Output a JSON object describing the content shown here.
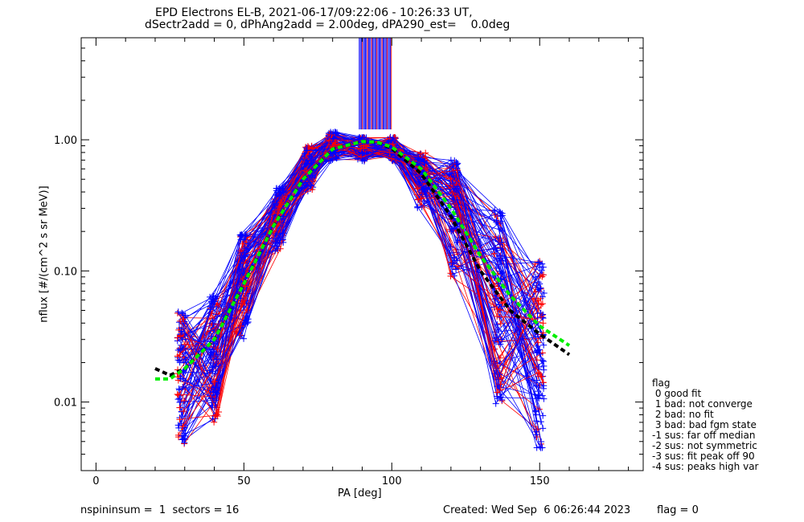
{
  "title_line1": "EPD Electrons EL-B, 2021-06-17/09:22:06 - 10:26:33 UT,",
  "title_line2": "dSectr2add = 0, dPhAng2add = 2.00deg, dPA290_est=    0.0deg",
  "footer": {
    "spin_info": "nspininsum =  1  sectors = 16",
    "created": "Created: Wed Sep  6 06:26:44 2023",
    "flag": "flag = 0"
  },
  "legend": {
    "title": "flag",
    "items": [
      " 0 good fit",
      " 1 bad: not converge",
      " 2 bad: no fit",
      " 3 bad: bad fgm state",
      "-1 sus: far off median",
      "-2 sus: not symmetric",
      "-3 sus: fit peak off 90",
      "-4 sus: peaks high var"
    ]
  },
  "colors": {
    "red": "#ff0000",
    "blue": "#0000ff",
    "green": "#00ee00",
    "black": "#000000"
  },
  "chart_data": {
    "type": "line",
    "xlabel": "PA [deg]",
    "ylabel": "nflux [#/(cm^2 s sr MeV)]",
    "xlim": [
      -5,
      185
    ],
    "ylim": [
      0.003,
      6
    ],
    "yscale": "log",
    "xticks": [
      0,
      50,
      100,
      150
    ],
    "xtick_labels": [
      "0",
      "50",
      "100",
      "150"
    ],
    "yticks": [
      0.01,
      0.1,
      1.0
    ],
    "ytick_labels": [
      "0.01",
      "0.10",
      "1.00"
    ],
    "grid": false,
    "series_envelope": {
      "x": [
        29,
        40,
        50,
        62,
        72,
        80,
        90,
        100,
        110,
        121,
        136,
        150
      ],
      "low_red": [
        0.004,
        0.007,
        0.03,
        0.14,
        0.4,
        0.68,
        0.68,
        0.68,
        0.3,
        0.09,
        0.008,
        0.004
      ],
      "mid": [
        0.02,
        0.04,
        0.1,
        0.3,
        0.65,
        0.85,
        0.9,
        0.85,
        0.55,
        0.25,
        0.04,
        0.013
      ],
      "high_blue": [
        0.05,
        0.065,
        0.2,
        0.45,
        0.9,
        1.15,
        1.05,
        1.05,
        0.8,
        0.7,
        0.3,
        0.12
      ]
    },
    "fit_green": {
      "x": [
        20,
        25,
        30,
        40,
        50,
        60,
        70,
        80,
        90,
        95,
        100,
        110,
        120,
        130,
        140,
        150,
        160
      ],
      "y": [
        0.015,
        0.015,
        0.018,
        0.03,
        0.08,
        0.22,
        0.5,
        0.85,
        0.97,
        0.96,
        0.88,
        0.6,
        0.3,
        0.13,
        0.065,
        0.038,
        0.027
      ]
    },
    "fit_black": {
      "x": [
        20,
        25,
        30,
        40,
        50,
        60,
        70,
        80,
        90,
        95,
        100,
        110,
        120,
        130,
        140,
        150,
        160
      ],
      "y": [
        0.018,
        0.016,
        0.018,
        0.03,
        0.08,
        0.22,
        0.5,
        0.85,
        0.97,
        0.96,
        0.86,
        0.55,
        0.26,
        0.1,
        0.05,
        0.033,
        0.023
      ]
    },
    "spike_region": {
      "x_start": 89,
      "x_end": 100,
      "y_from": 1.2,
      "y_to": 6
    }
  }
}
